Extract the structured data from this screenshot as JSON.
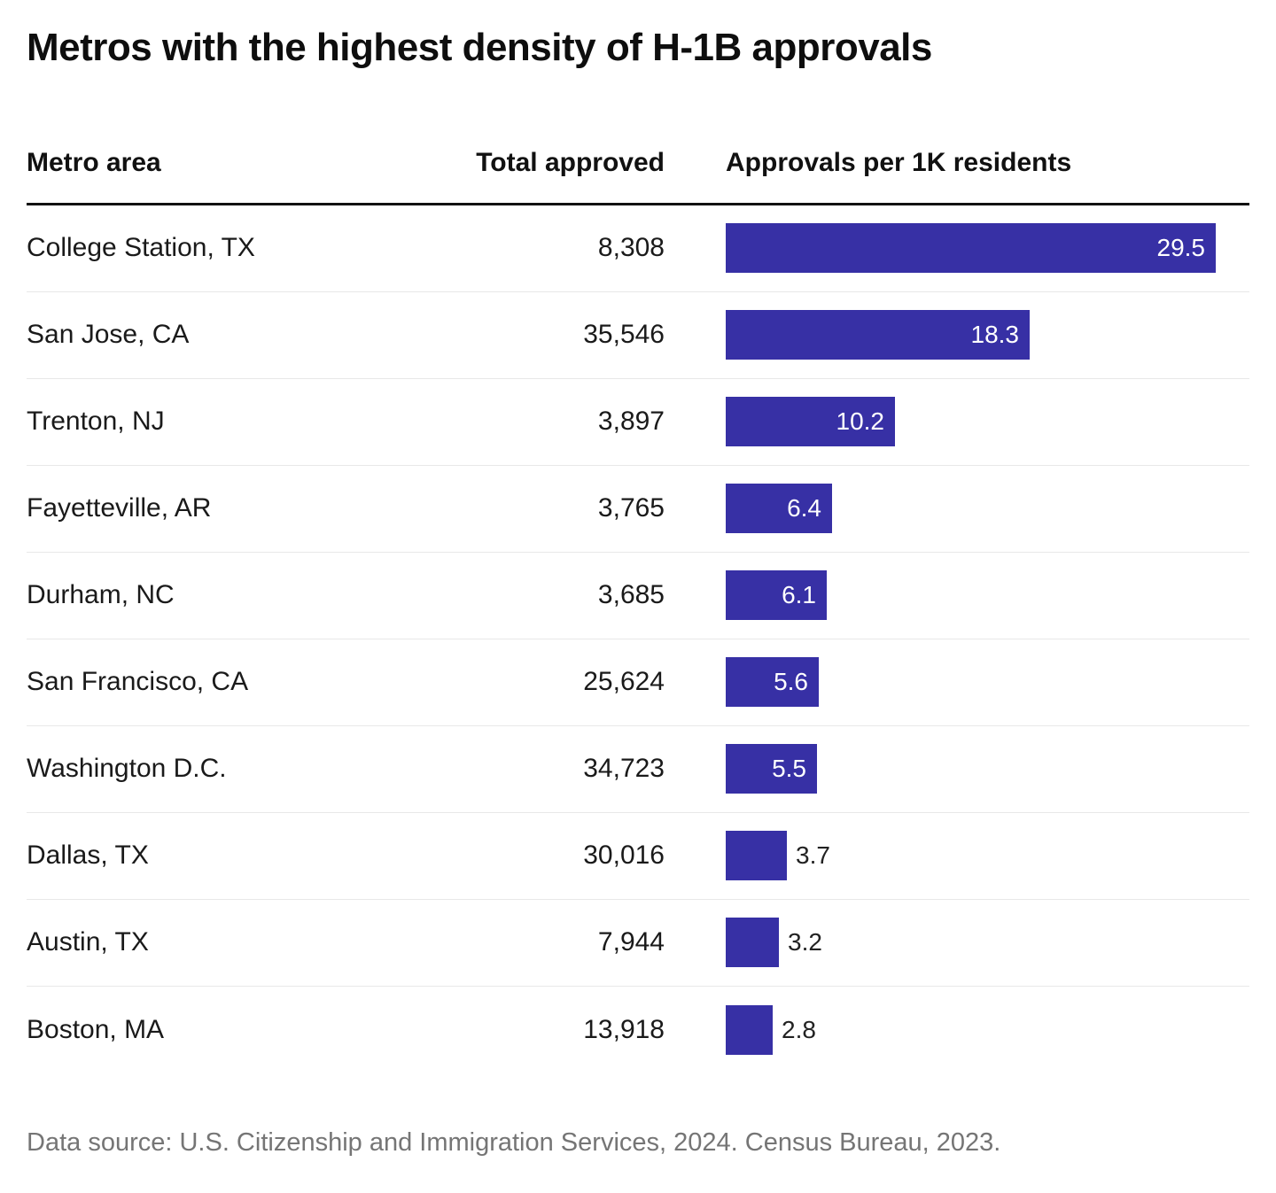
{
  "title": "Metros with the highest density of H-1B approvals",
  "table": {
    "headers": [
      "Metro area",
      "Total approved",
      "Approvals per 1K residents"
    ]
  },
  "footer": "Data source: U.S. Citizenship and Immigration Services, 2024. Census Bureau, 2023.",
  "colors": {
    "bar": "#3730a5",
    "bar_label_inside": "#ffffff",
    "bar_label_outside": "#222222",
    "header_rule": "#111111",
    "row_separator": "#e8e8e8",
    "footer_text": "#757575"
  },
  "chart_data": {
    "type": "bar",
    "orientation": "horizontal",
    "title": "Metros with the highest density of H-1B approvals",
    "categories": [
      "College Station, TX",
      "San Jose, CA",
      "Trenton, NJ",
      "Fayetteville, AR",
      "Durham, NC",
      "San Francisco, CA",
      "Washington D.C.",
      "Dallas, TX",
      "Austin, TX",
      "Boston, MA"
    ],
    "series": [
      {
        "name": "Total approved",
        "values": [
          8308,
          35546,
          3897,
          3765,
          3685,
          25624,
          34723,
          30016,
          7944,
          13918
        ],
        "formatted": [
          "8,308",
          "35,546",
          "3,897",
          "3,765",
          "3,685",
          "25,624",
          "34,723",
          "30,016",
          "7,944",
          "13,918"
        ]
      },
      {
        "name": "Approvals per 1K residents",
        "values": [
          29.5,
          18.3,
          10.2,
          6.4,
          6.1,
          5.6,
          5.5,
          3.7,
          3.2,
          2.8
        ],
        "formatted": [
          "29.5",
          "18.3",
          "10.2",
          "6.4",
          "6.1",
          "5.6",
          "5.5",
          "3.7",
          "3.2",
          "2.8"
        ]
      }
    ],
    "xlim": [
      0,
      29.5
    ],
    "grid": false,
    "legend": false,
    "bar_color": "#3730a5",
    "value_labels": "end-of-bar, white inside bar when bar is wide, dark outside bar when narrow"
  }
}
